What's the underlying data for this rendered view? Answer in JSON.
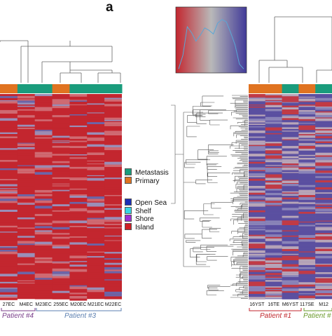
{
  "figure": {
    "panel_letter": "a"
  },
  "chart_data": {
    "type": "heatmap",
    "title": "",
    "color_scale": {
      "low": "#c3262f",
      "mid": "#b9b9b9",
      "high": "#413a98"
    },
    "left_heatmap": {
      "samples": [
        "27EC",
        "M4EC",
        "M23EC",
        "255EC",
        "M20EC",
        "M21EC",
        "M22EC"
      ],
      "sample_type": [
        "Primary",
        "Metastasis",
        "Metastasis",
        "Primary",
        "Metastasis",
        "Metastasis",
        "Metastasis"
      ],
      "patients": [
        {
          "name": "Patient #4",
          "color": "#7a3e8a"
        },
        {
          "name": "Patient #3",
          "color": "#5b7fb0"
        }
      ]
    },
    "right_heatmap": {
      "samples": [
        "16YST",
        "16TE",
        "M6YST",
        "117SE",
        "M12"
      ],
      "sample_type": [
        "Primary",
        "Primary",
        "Metastasis",
        "Primary",
        "Metastasis"
      ],
      "patients": [
        {
          "name": "Patient #1",
          "color": "#c0262c"
        },
        {
          "name": "Patient #",
          "color": "#6a9a2a"
        }
      ]
    },
    "legend_tissue": [
      {
        "label": "Metastasis",
        "color": "#1a9c7c"
      },
      {
        "label": "Primary",
        "color": "#e07320"
      }
    ],
    "legend_region": [
      {
        "label": "Open Sea",
        "color": "#1c2fb6"
      },
      {
        "label": "Shelf",
        "color": "#35d6e4"
      },
      {
        "label": "Shore",
        "color": "#9c2fd6"
      },
      {
        "label": "Island",
        "color": "#cf2026"
      }
    ],
    "density_inset": {
      "type": "line",
      "line_color": "#5aa7d6",
      "values": [
        0.02,
        0.25,
        0.72,
        0.62,
        0.48,
        0.58,
        0.7,
        0.66,
        0.6,
        0.78,
        0.84,
        0.8,
        0.62,
        0.42,
        0.1,
        0.02
      ]
    }
  }
}
